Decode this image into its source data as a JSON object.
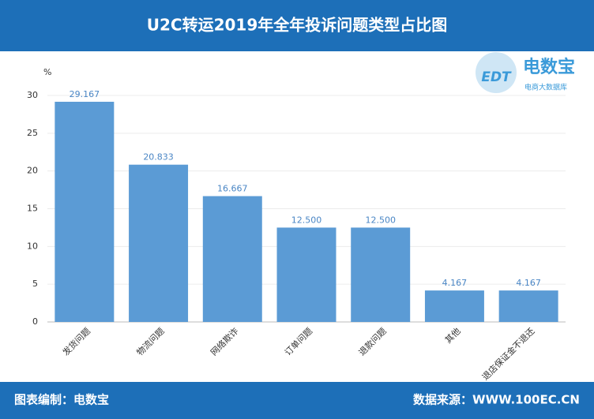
{
  "chart_data": {
    "type": "bar",
    "title": "U2C转运2019年全年投诉问题类型占比图",
    "y_label": "%",
    "categories": [
      "发货问题",
      "物流问题",
      "网络欺诈",
      "订单问题",
      "退款问题",
      "其他",
      "退店保证金不退还"
    ],
    "values": [
      29.167,
      20.833,
      16.667,
      12.5,
      12.5,
      4.167,
      4.167
    ],
    "value_labels": [
      "29.167",
      "20.833",
      "16.667",
      "12.500",
      "12.500",
      "4.167",
      "4.167"
    ],
    "color": "#5b9bd5",
    "ylim": [
      0,
      30
    ],
    "yticks": [
      0,
      5,
      10,
      15,
      20,
      25,
      30
    ],
    "grid": true
  },
  "logo": {
    "mark": "EDT",
    "name": "电数宝",
    "tagline": "电商大数据库"
  },
  "footer": {
    "left": "图表编制：电数宝",
    "right": "数据来源：WWW.100EC.CN"
  }
}
